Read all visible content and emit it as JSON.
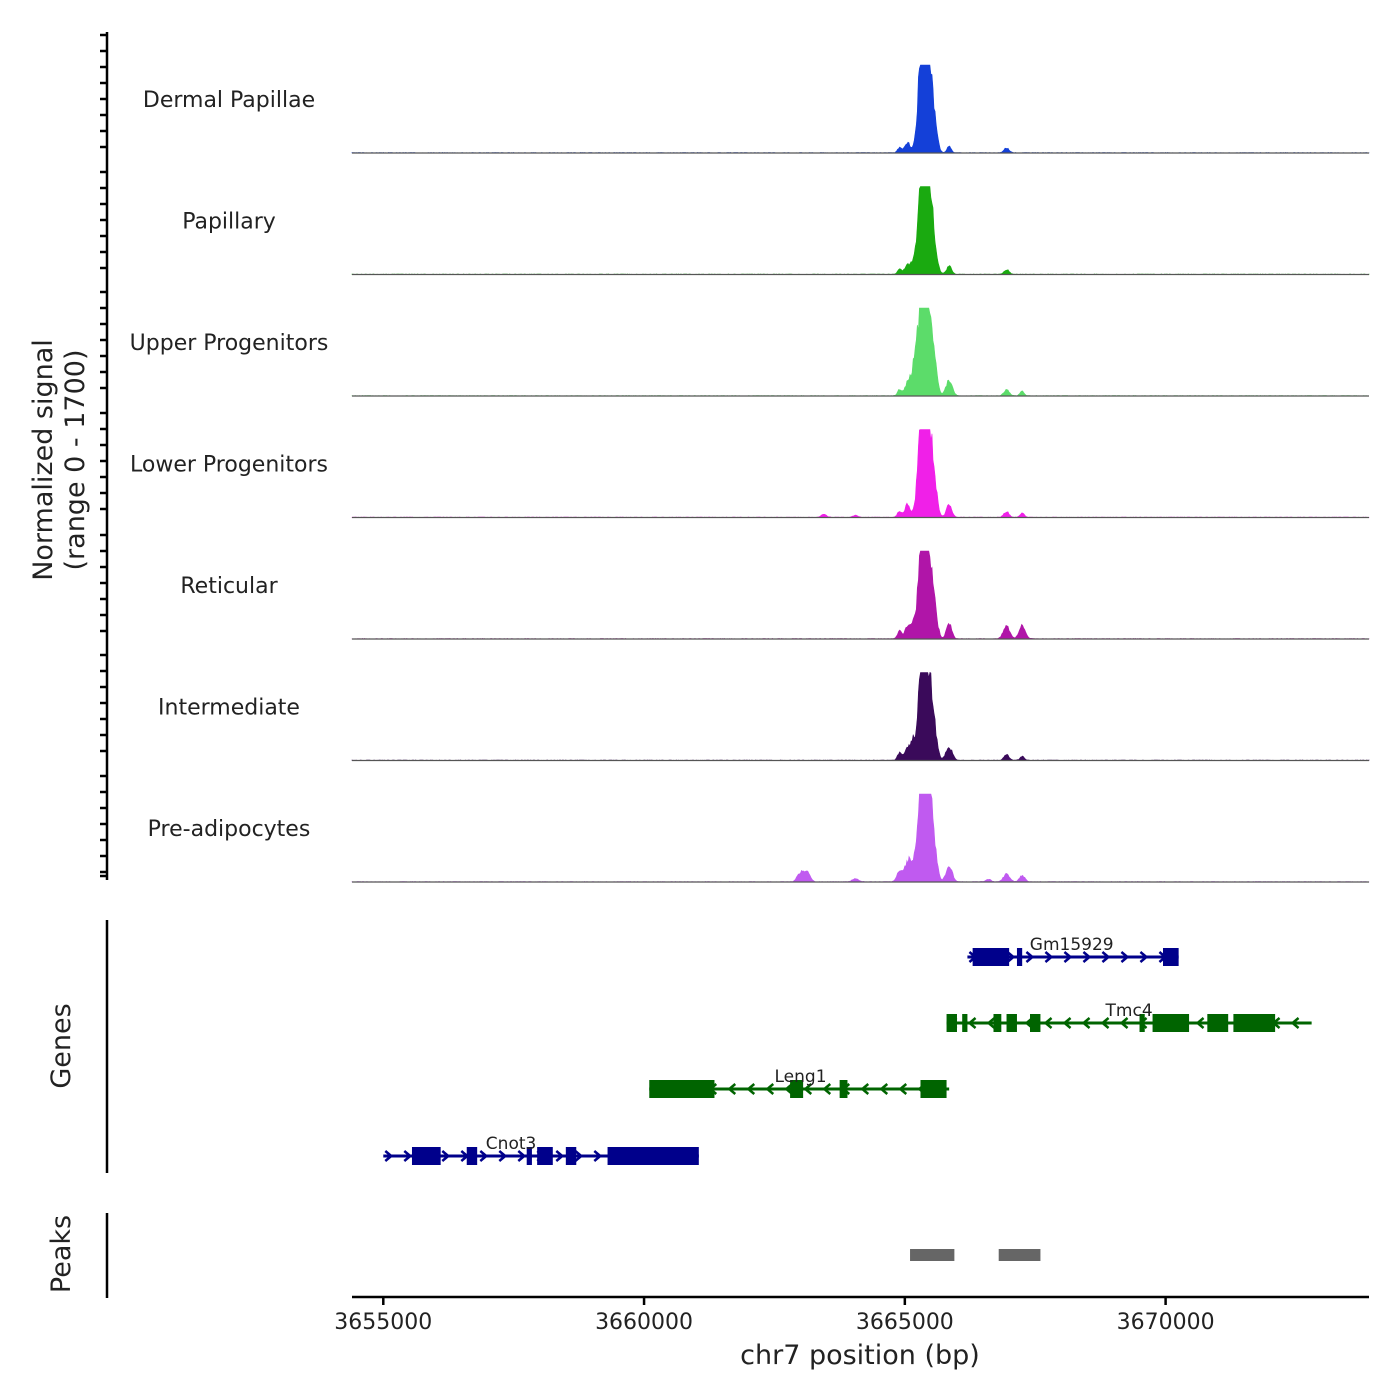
{
  "chart_data": {
    "type": "area",
    "title": "",
    "ylabel_line1": "Normalized signal",
    "ylabel_line2": "(range 0 - 1700)",
    "xlabel": "chr7 position (bp)",
    "xlim": [
      3654400,
      3673900
    ],
    "ylim": [
      0,
      1700
    ],
    "x_ticks": [
      3655000,
      3660000,
      3665000,
      3670000
    ],
    "x_tick_labels": [
      "3655000",
      "3660000",
      "3665000",
      "3670000"
    ],
    "genes_label": "Genes",
    "peaks_label": "Peaks",
    "tracks": [
      {
        "name": "Dermal Papillae",
        "color": "#1440d8",
        "peaks": [
          [
            3665320,
            1700,
            70
          ],
          [
            3665420,
            1500,
            70
          ],
          [
            3665530,
            800,
            70
          ],
          [
            3665050,
            200,
            50
          ],
          [
            3664900,
            100,
            40
          ],
          [
            3665850,
            120,
            40
          ],
          [
            3666950,
            90,
            50
          ]
        ]
      },
      {
        "name": "Papillary",
        "color": "#1aaa10",
        "peaks": [
          [
            3665320,
            1700,
            70
          ],
          [
            3665420,
            1500,
            70
          ],
          [
            3665530,
            800,
            70
          ],
          [
            3665050,
            200,
            50
          ],
          [
            3665150,
            150,
            40
          ],
          [
            3664900,
            100,
            40
          ],
          [
            3665850,
            150,
            50
          ],
          [
            3666950,
            90,
            50
          ]
        ]
      },
      {
        "name": "Upper Progenitors",
        "color": "#5cdc6a",
        "peaks": [
          [
            3665320,
            1700,
            70
          ],
          [
            3665420,
            1500,
            70
          ],
          [
            3665530,
            900,
            70
          ],
          [
            3665050,
            250,
            50
          ],
          [
            3665150,
            300,
            50
          ],
          [
            3665200,
            350,
            40
          ],
          [
            3664900,
            120,
            40
          ],
          [
            3665850,
            300,
            60
          ],
          [
            3666950,
            120,
            50
          ],
          [
            3667250,
            90,
            40
          ]
        ]
      },
      {
        "name": "Lower Progenitors",
        "color": "#f020e8",
        "peaks": [
          [
            3665320,
            1700,
            70
          ],
          [
            3665420,
            1500,
            70
          ],
          [
            3665530,
            900,
            70
          ],
          [
            3665050,
            250,
            50
          ],
          [
            3664900,
            120,
            40
          ],
          [
            3665850,
            250,
            50
          ],
          [
            3666950,
            110,
            50
          ],
          [
            3667250,
            80,
            40
          ],
          [
            3663450,
            60,
            50
          ],
          [
            3664050,
            40,
            50
          ]
        ]
      },
      {
        "name": "Reticular",
        "color": "#b015a8",
        "peaks": [
          [
            3665320,
            1600,
            70
          ],
          [
            3665420,
            1400,
            70
          ],
          [
            3665530,
            850,
            70
          ],
          [
            3665050,
            250,
            50
          ],
          [
            3665150,
            200,
            40
          ],
          [
            3664900,
            150,
            40
          ],
          [
            3665850,
            300,
            50
          ],
          [
            3666950,
            250,
            60
          ],
          [
            3667250,
            250,
            60
          ]
        ]
      },
      {
        "name": "Intermediate",
        "color": "#3a0a5a",
        "peaks": [
          [
            3665320,
            1550,
            70
          ],
          [
            3665420,
            1350,
            70
          ],
          [
            3665530,
            800,
            70
          ],
          [
            3665050,
            250,
            50
          ],
          [
            3665150,
            300,
            40
          ],
          [
            3664900,
            150,
            40
          ],
          [
            3665850,
            250,
            60
          ],
          [
            3666950,
            110,
            50
          ],
          [
            3667250,
            80,
            40
          ]
        ]
      },
      {
        "name": "Pre-adipocytes",
        "color": "#c05af0",
        "peaks": [
          [
            3665320,
            1700,
            70
          ],
          [
            3665420,
            1500,
            70
          ],
          [
            3665530,
            900,
            70
          ],
          [
            3665050,
            350,
            60
          ],
          [
            3665150,
            300,
            50
          ],
          [
            3664900,
            200,
            50
          ],
          [
            3665850,
            300,
            60
          ],
          [
            3666950,
            150,
            60
          ],
          [
            3667250,
            120,
            50
          ],
          [
            3663050,
            200,
            60
          ],
          [
            3663150,
            120,
            50
          ],
          [
            3662950,
            80,
            40
          ],
          [
            3664050,
            60,
            60
          ],
          [
            3666600,
            50,
            50
          ]
        ]
      }
    ],
    "genes": [
      {
        "name": "Gm15929",
        "strand": "+",
        "color": "#00008b",
        "start": 3666200,
        "end": 3670250,
        "label_x": 3668200,
        "exons": [
          [
            3666300,
            3667000
          ],
          [
            3667150,
            3667250
          ],
          [
            3669950,
            3670250
          ]
        ]
      },
      {
        "name": "Tmc4",
        "strand": "-",
        "color": "#006400",
        "start": 3665800,
        "end": 3672800,
        "label_x": 3669300,
        "exons": [
          [
            3665800,
            3666000
          ],
          [
            3666100,
            3666200
          ],
          [
            3666700,
            3666850
          ],
          [
            3666950,
            3667150
          ],
          [
            3667400,
            3667600
          ],
          [
            3669500,
            3669600
          ],
          [
            3669750,
            3670450
          ],
          [
            3670800,
            3671200
          ],
          [
            3671300,
            3672100
          ]
        ]
      },
      {
        "name": "Leng1",
        "strand": "-",
        "color": "#006400",
        "start": 3660100,
        "end": 3665850,
        "label_x": 3663000,
        "exons": [
          [
            3660100,
            3661350
          ],
          [
            3662800,
            3663050
          ],
          [
            3663750,
            3663900
          ],
          [
            3665300,
            3665800
          ]
        ]
      },
      {
        "name": "Cnot3",
        "strand": "+",
        "color": "#00008b",
        "start": 3655000,
        "end": 3661050,
        "label_x": 3657450,
        "exons": [
          [
            3655550,
            3656100
          ],
          [
            3656600,
            3656800
          ],
          [
            3657750,
            3657850
          ],
          [
            3657950,
            3658250
          ],
          [
            3658500,
            3658700
          ],
          [
            3659300,
            3661050
          ]
        ]
      }
    ],
    "peak_regions": [
      [
        3665100,
        3665950
      ],
      [
        3666800,
        3667600
      ]
    ],
    "peak_color": "#666666"
  }
}
